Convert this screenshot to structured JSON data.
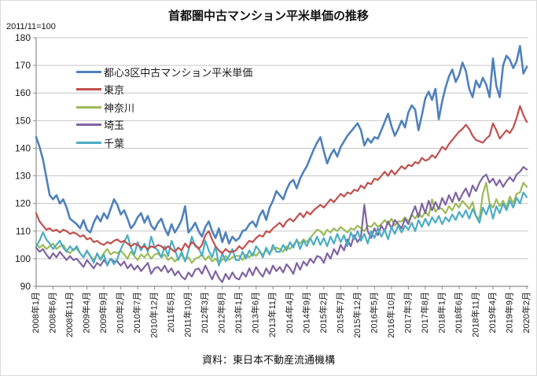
{
  "chart": {
    "title": "首都圏中古マンション平米単価の推移",
    "index_note": "2011/11=100",
    "source": "資料：東日本不動産流通機構"
  },
  "colors": {
    "grid": "#c6c6c6",
    "axis": "#8c8c8c",
    "text": "#1a1a1a"
  },
  "chart_data": {
    "type": "line",
    "title": "首都圏中古マンション平米単価の推移",
    "index_note": "2011/11=100",
    "source": "資料：東日本不動産流通機構",
    "x_unit": "month",
    "x_start_label": "2008年1月",
    "x_end_label": "2020年2月",
    "months": 146,
    "x_tick_every_months": 5,
    "x_tick_labels": [
      "2008年1月",
      "2008年6月",
      "2008年11月",
      "2009年4月",
      "2009年9月",
      "2010年2月",
      "2010年7月",
      "2010年12月",
      "2011年5月",
      "2011年10月",
      "2012年3月",
      "2012年8月",
      "2013年1月",
      "2013年6月",
      "2013年11月",
      "2014年4月",
      "2014年9月",
      "2015年2月",
      "2015年7月",
      "2015年12月",
      "2016年5月",
      "2016年10月",
      "2017年3月",
      "2017年8月",
      "2018年1月",
      "2018年6月",
      "2018年11月",
      "2019年4月",
      "2019年9月",
      "2020年2月"
    ],
    "ylim": [
      90,
      180
    ],
    "y_ticks": [
      90,
      100,
      110,
      120,
      130,
      140,
      150,
      160,
      170,
      180
    ],
    "grid": "horizontal",
    "legend_position": "inside-top-left",
    "series": [
      {
        "name": "都心3区中古マンション平米単価",
        "color": "#4F81BD",
        "values": [
          144,
          140.5,
          136,
          129.5,
          123,
          121.5,
          123,
          120,
          121.5,
          118.5,
          114.5,
          113.5,
          112.5,
          111,
          114,
          110.5,
          109.5,
          113,
          115.5,
          113.5,
          116.5,
          114.5,
          118,
          121.5,
          119.5,
          116,
          117.5,
          114.5,
          111,
          112.5,
          115,
          116.5,
          113,
          115.5,
          112,
          110.5,
          113,
          114.5,
          111,
          108.5,
          112.5,
          109.5,
          111.5,
          114,
          119,
          109.5,
          111,
          113,
          110,
          108,
          111.5,
          113.5,
          110,
          107.5,
          111,
          106,
          109.5,
          105.5,
          108,
          106.5,
          107.5,
          110,
          110.5,
          112.5,
          113.5,
          111.5,
          115.5,
          117.5,
          114,
          118.5,
          121,
          124.5,
          123,
          121.5,
          125,
          127.5,
          128.5,
          125.5,
          129,
          131.5,
          133.5,
          136.5,
          139.5,
          142,
          144,
          139,
          134.5,
          137.5,
          139.5,
          137,
          140.5,
          142.5,
          144.5,
          146,
          147.5,
          149,
          146.5,
          141,
          143.5,
          142,
          144,
          143.5,
          146.5,
          149.5,
          152.5,
          148,
          144.5,
          147,
          150,
          147.5,
          153,
          155.5,
          154,
          146.5,
          152,
          158,
          160.5,
          157.5,
          161.5,
          150.5,
          157,
          162,
          166,
          168.5,
          164,
          166.5,
          171,
          168,
          161.5,
          158.5,
          164.5,
          162,
          165.5,
          163,
          158.5,
          172.5,
          162.5,
          158.5,
          170,
          173.5,
          172,
          169,
          171.5,
          177,
          167,
          169.5
        ]
      },
      {
        "name": "東京",
        "color": "#C0504D",
        "values": [
          116.5,
          113.5,
          112,
          110.5,
          111,
          110,
          110.5,
          109.5,
          110.5,
          110,
          109,
          109.5,
          109,
          108,
          108.5,
          107,
          107.5,
          106,
          106.5,
          105.5,
          105,
          106,
          105.5,
          106.5,
          107,
          106,
          106.5,
          105.5,
          104.5,
          105.5,
          105,
          104,
          104.5,
          103.5,
          104.5,
          104,
          105,
          104.5,
          103.5,
          104.5,
          103.5,
          102.5,
          104,
          103,
          105.5,
          104,
          106,
          105,
          103.5,
          105,
          108.5,
          110,
          107,
          104.5,
          103,
          102,
          103.5,
          102.5,
          102.5,
          103,
          104.5,
          103.5,
          105,
          106.5,
          106,
          107.5,
          108.5,
          108,
          110,
          109.5,
          111,
          112,
          113,
          111.5,
          113.5,
          114.5,
          113.5,
          115,
          116.5,
          115,
          117,
          116,
          117.5,
          118.5,
          119.5,
          118.5,
          120,
          121.5,
          120.5,
          122,
          123.5,
          122.5,
          124,
          123.5,
          125,
          124.5,
          126.5,
          125.5,
          127.5,
          127,
          129,
          128.5,
          130,
          131.5,
          130,
          132,
          130.5,
          132,
          133.5,
          132.5,
          134,
          133.5,
          135,
          134.5,
          136.5,
          135.5,
          136,
          137.5,
          136.5,
          138.5,
          140.5,
          139.5,
          141.5,
          143,
          144.5,
          146,
          147,
          148.5,
          147,
          144.5,
          143,
          142.5,
          142,
          143.5,
          144.5,
          149,
          146.5,
          143.5,
          145,
          146.5,
          145.5,
          147.5,
          151,
          155.3,
          152,
          149.5
        ]
      },
      {
        "name": "神奈川",
        "color": "#9BBB59",
        "values": [
          105.5,
          104,
          105,
          103.5,
          104.5,
          105.5,
          103.5,
          104.5,
          105,
          103,
          102,
          103.5,
          103.5,
          102,
          100.5,
          102.5,
          101,
          99.5,
          101.5,
          100,
          102,
          103.5,
          101.5,
          102.5,
          102,
          103,
          101.5,
          100,
          102.5,
          101,
          99.5,
          101.5,
          100.5,
          102,
          100,
          101.5,
          102,
          100.5,
          101.5,
          99.5,
          100.5,
          99,
          100,
          101.5,
          99.5,
          100.5,
          98.5,
          100,
          100.5,
          101.5,
          99.5,
          101,
          99,
          100,
          98.5,
          99.5,
          101,
          99.5,
          100.5,
          101,
          101,
          99.5,
          101.5,
          100.5,
          102,
          101,
          102.5,
          101.5,
          103,
          102,
          103.5,
          104,
          103.5,
          102.5,
          104.5,
          103.5,
          105,
          106.5,
          105.5,
          107,
          106,
          107.5,
          109,
          110.5,
          110,
          108.5,
          110.5,
          109.5,
          111,
          110,
          111.5,
          110.5,
          109.5,
          111,
          110.5,
          112,
          111,
          110,
          112,
          111.5,
          113,
          111.5,
          112.5,
          114,
          112.5,
          114.5,
          112,
          113.5,
          113.5,
          115,
          113.5,
          116,
          114.5,
          116.5,
          115,
          117,
          115.5,
          121.5,
          117,
          118.5,
          118,
          116.5,
          119,
          117.5,
          120,
          118.5,
          121,
          119.5,
          118,
          120.5,
          115.5,
          114.5,
          123.5,
          127.5,
          120,
          118.5,
          121.5,
          119,
          121,
          118.5,
          122.5,
          120,
          123.5,
          124,
          127.5,
          126
        ]
      },
      {
        "name": "埼玉",
        "color": "#8064A2",
        "values": [
          104,
          102.5,
          103.5,
          101.5,
          100,
          102,
          100.5,
          102.5,
          101,
          99.5,
          101,
          99.5,
          100,
          98.5,
          97,
          99.5,
          98,
          96.5,
          98.5,
          97.5,
          99.5,
          98,
          100,
          99,
          99,
          97.5,
          99,
          96.5,
          98,
          96,
          97.5,
          95.5,
          97,
          98.5,
          94.5,
          96.5,
          97,
          95.5,
          97.5,
          95,
          96.5,
          94,
          95.5,
          93.5,
          92.5,
          95,
          93.5,
          96,
          96.5,
          94.5,
          97.5,
          95,
          92.5,
          95.5,
          93,
          91.5,
          94.5,
          92.5,
          95,
          93,
          92.5,
          95,
          93.5,
          96.5,
          94,
          97,
          95,
          93.5,
          96.5,
          94.5,
          97.5,
          95.5,
          97,
          95,
          98,
          96.5,
          94.5,
          98.5,
          96,
          99,
          97.5,
          100,
          98.5,
          101,
          100.5,
          98.5,
          102,
          100,
          103.5,
          101.5,
          105,
          103,
          107,
          104.5,
          108.5,
          106,
          108,
          119.5,
          110,
          107.5,
          111,
          108.5,
          112,
          110,
          113.5,
          111,
          114,
          112.5,
          111,
          114.5,
          112.5,
          116,
          119,
          115,
          120,
          116.5,
          121,
          117.5,
          120.5,
          118,
          122,
          119.5,
          123,
          120.5,
          124,
          121,
          123.5,
          125.5,
          122.5,
          126.5,
          124.5,
          127.5,
          129.5,
          130.5,
          127.5,
          129,
          126.5,
          128.5,
          126,
          128,
          129.5,
          128,
          130.5,
          131.5,
          133.2,
          132.3
        ]
      },
      {
        "name": "千葉",
        "color": "#4BACC6",
        "values": [
          104.5,
          106.5,
          109.5,
          107,
          105.5,
          103.5,
          105,
          106.5,
          104,
          102.5,
          104.5,
          103,
          104.5,
          102,
          100.5,
          103,
          101,
          98.5,
          102,
          99.5,
          101.5,
          97.5,
          100,
          98,
          100,
          103.5,
          106,
          108.5,
          104,
          101.5,
          106,
          103,
          105.5,
          102.5,
          108,
          104,
          103,
          100.5,
          104.5,
          101,
          106.5,
          103.5,
          99.5,
          102.5,
          99,
          103,
          108,
          104.5,
          104,
          101,
          106.5,
          103,
          100.5,
          104.5,
          97.5,
          102,
          99,
          101,
          103.5,
          99.5,
          99.5,
          102.5,
          100,
          103,
          101,
          104.5,
          103,
          100.5,
          104,
          101.5,
          105,
          102.5,
          102.5,
          105,
          103,
          106,
          104,
          107,
          103.5,
          106.5,
          104.5,
          107.5,
          105,
          108,
          105,
          107.5,
          104.5,
          108,
          105.5,
          109,
          106,
          108.5,
          104.5,
          109.5,
          107,
          110,
          106.5,
          109,
          105.5,
          110,
          107.5,
          111,
          108,
          110.5,
          107,
          111.5,
          109,
          112,
          109.5,
          112,
          110.5,
          113,
          110,
          114,
          111.5,
          114.5,
          112,
          115,
          113,
          115.5,
          112.5,
          115,
          113.5,
          116,
          114,
          117,
          115,
          117.5,
          114.5,
          118,
          115.5,
          113,
          118.5,
          116,
          119.5,
          114.5,
          119,
          116.5,
          120,
          117.5,
          121,
          118.5,
          122,
          120,
          124,
          122.3
        ]
      }
    ]
  }
}
